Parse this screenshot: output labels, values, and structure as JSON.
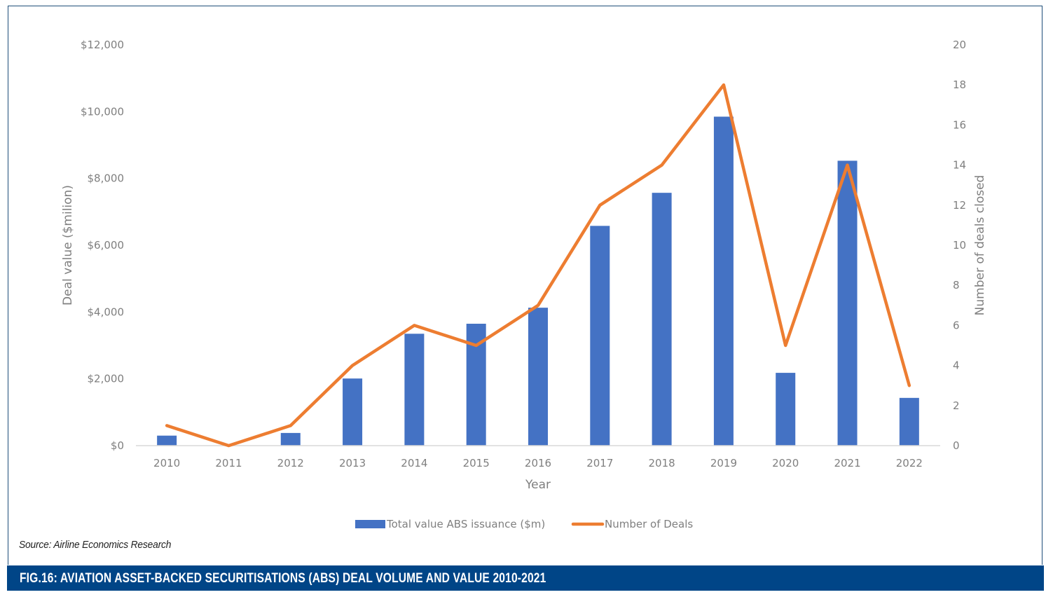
{
  "figure": {
    "title": "FIG.16: AVIATION ASSET-BACKED SECURITISATIONS (ABS) DEAL VOLUME AND VALUE 2010-2021",
    "source": "Source: Airline Economics Research"
  },
  "chart_data": {
    "type": "bar+line",
    "title": "FIG.16: AVIATION ASSET-BACKED SECURITISATIONS (ABS) DEAL VOLUME AND VALUE 2010-2021",
    "categories": [
      "2010",
      "2011",
      "2012",
      "2013",
      "2014",
      "2015",
      "2016",
      "2017",
      "2018",
      "2019",
      "2020",
      "2021",
      "2022"
    ],
    "xlabel": "Year",
    "ylabel": "Deal value ($milion)",
    "y2label": "Number of deals closed",
    "ylim": [
      0,
      12000
    ],
    "y2lim": [
      0,
      20
    ],
    "yticks": [
      "$0",
      "$2,000",
      "$4,000",
      "$6,000",
      "$8,000",
      "$10,000",
      "$12,000"
    ],
    "ytick_values": [
      0,
      2000,
      4000,
      6000,
      8000,
      10000,
      12000
    ],
    "y2ticks": [
      "0",
      "2",
      "4",
      "6",
      "8",
      "10",
      "12",
      "14",
      "16",
      "18",
      "20"
    ],
    "y2tick_values": [
      0,
      2,
      4,
      6,
      8,
      10,
      12,
      14,
      16,
      18,
      20
    ],
    "grid": false,
    "legend_position": "bottom",
    "series": [
      {
        "name": "Total value ABS issuance ($m)",
        "type": "bar",
        "axis": "left",
        "color": "#4472C4",
        "values": [
          300,
          0,
          380,
          2010,
          3350,
          3650,
          4130,
          6580,
          7570,
          9850,
          2180,
          8530,
          1430
        ]
      },
      {
        "name": "Number of Deals",
        "type": "line",
        "axis": "right",
        "color": "#ED7D31",
        "values": [
          1,
          0,
          1,
          4,
          6,
          5,
          7,
          12,
          14,
          18,
          5,
          14,
          3
        ]
      }
    ]
  }
}
